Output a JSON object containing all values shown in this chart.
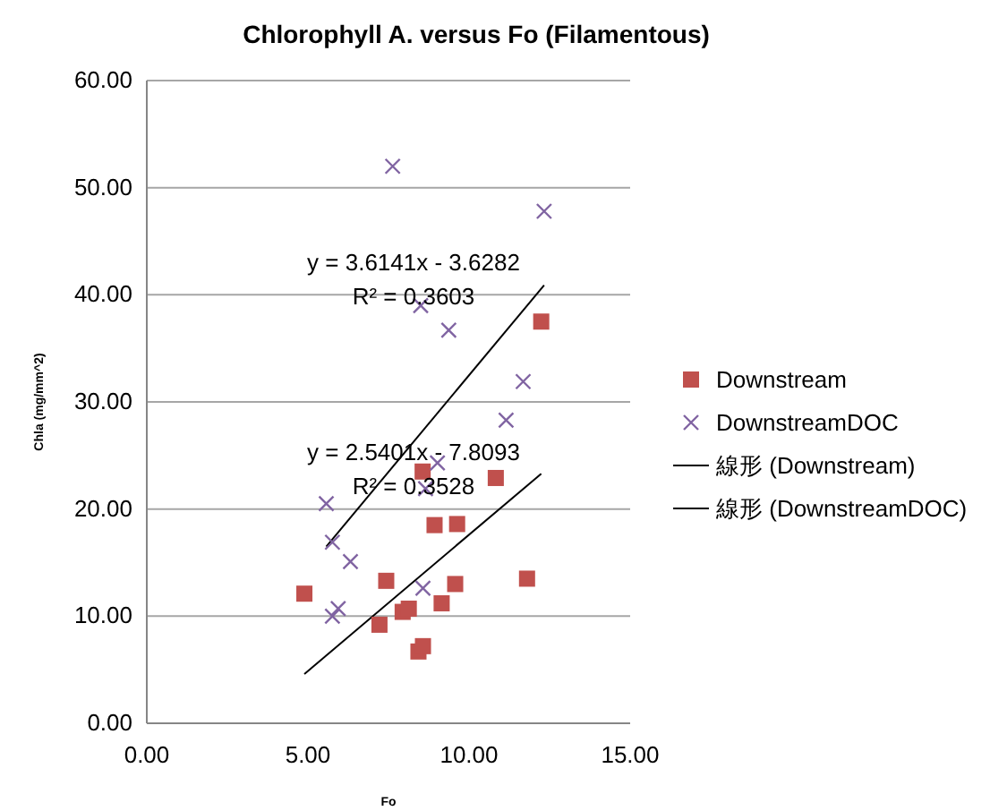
{
  "chart_data": {
    "type": "scatter",
    "title": "Chlorophyll A. versus Fo (Filamentous)",
    "xlabel": "Fo",
    "ylabel": "Chla (mg/mm^2)",
    "xlim": [
      0,
      15
    ],
    "ylim": [
      0,
      60
    ],
    "xticks": [
      {
        "value": 0,
        "label": "0.00"
      },
      {
        "value": 5,
        "label": "5.00"
      },
      {
        "value": 10,
        "label": "10.00"
      },
      {
        "value": 15,
        "label": "15.00"
      }
    ],
    "yticks": [
      {
        "value": 0,
        "label": "0.00"
      },
      {
        "value": 10,
        "label": "10.00"
      },
      {
        "value": 20,
        "label": "20.00"
      },
      {
        "value": 30,
        "label": "30.00"
      },
      {
        "value": 40,
        "label": "40.00"
      },
      {
        "value": 50,
        "label": "50.00"
      },
      {
        "value": 60,
        "label": "60.00"
      }
    ],
    "grid": "y",
    "legend": "right",
    "series": [
      {
        "name": "Downstream",
        "marker": "square",
        "color": "#c0504d",
        "x": [
          4.89,
          7.43,
          7.22,
          7.94,
          8.13,
          8.43,
          8.57,
          8.56,
          8.93,
          9.63,
          9.15,
          9.57,
          10.83,
          11.8,
          12.24
        ],
        "values": [
          12.1,
          13.3,
          9.2,
          10.4,
          10.7,
          6.7,
          7.2,
          23.5,
          18.5,
          18.6,
          11.2,
          13.0,
          22.9,
          13.5,
          37.5
        ]
      },
      {
        "name": "DownstreamDOC",
        "marker": "cross",
        "color": "#8064a2",
        "x": [
          7.63,
          12.33,
          8.5,
          9.37,
          11.68,
          11.15,
          9.02,
          8.65,
          5.57,
          5.76,
          6.32,
          8.57,
          5.94,
          5.76
        ],
        "values": [
          52.0,
          47.8,
          39.0,
          36.7,
          31.9,
          28.3,
          24.3,
          21.9,
          20.5,
          16.9,
          15.1,
          12.6,
          10.7,
          10.0
        ]
      },
      {
        "name": "線形 (Downstream)",
        "type": "line",
        "marker": "none",
        "color": "#000000",
        "x": [
          4.89,
          12.24
        ],
        "values": [
          4.6,
          23.3
        ]
      },
      {
        "name": "線形 (DownstreamDOC)",
        "type": "line",
        "marker": "none",
        "color": "#000000",
        "x": [
          5.57,
          12.33
        ],
        "values": [
          16.5,
          40.9
        ]
      }
    ],
    "annotations": [
      "y = 3.6141x - 3.6282",
      "R² = 0.3603",
      "y = 2.5401x - 7.8093",
      "R² = 0.3528"
    ]
  }
}
